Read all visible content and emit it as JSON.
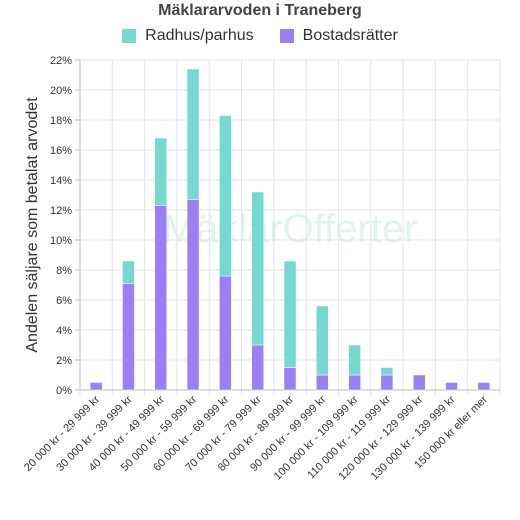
{
  "chart_data": {
    "type": "bar",
    "stacked": true,
    "title": "Mäklararvoden i Traneberg",
    "ylabel": "Andelen säljare som betalat arvodet",
    "xlabel": "",
    "ylim": [
      0,
      22
    ],
    "yticks": [
      "0%",
      "2%",
      "4%",
      "6%",
      "8%",
      "10%",
      "12%",
      "14%",
      "16%",
      "18%",
      "20%",
      "22%"
    ],
    "grid": true,
    "legend_position": "top",
    "watermark": "MäklarOfferter",
    "categories": [
      "20 000 kr - 29 999 kr",
      "30 000 kr - 39 999 kr",
      "40 000 kr - 49 999 kr",
      "50 000 kr - 59 999 kr",
      "60 000 kr - 69 999 kr",
      "70 000 kr - 79 999 kr",
      "80 000 kr - 89 999 kr",
      "90 000 kr - 99 999 kr",
      "100 000 kr - 109 999 kr",
      "110 000 kr - 119 999 kr",
      "120 000 kr - 129 999 kr",
      "130 000 kr - 139 999 kr",
      "150 000 kr eller mer"
    ],
    "series": [
      {
        "name": "Bostadsrätter",
        "color": "#9b7ff4",
        "values": [
          0.5,
          7.1,
          12.3,
          12.7,
          7.6,
          3.0,
          1.5,
          1.0,
          1.0,
          1.0,
          1.0,
          0.5,
          0.5
        ]
      },
      {
        "name": "Radhus/parhus",
        "color": "#76d9cf",
        "values": [
          0.0,
          1.5,
          4.5,
          8.7,
          10.7,
          10.2,
          7.1,
          4.6,
          2.0,
          0.5,
          0.0,
          0.0,
          0.0
        ]
      }
    ]
  }
}
